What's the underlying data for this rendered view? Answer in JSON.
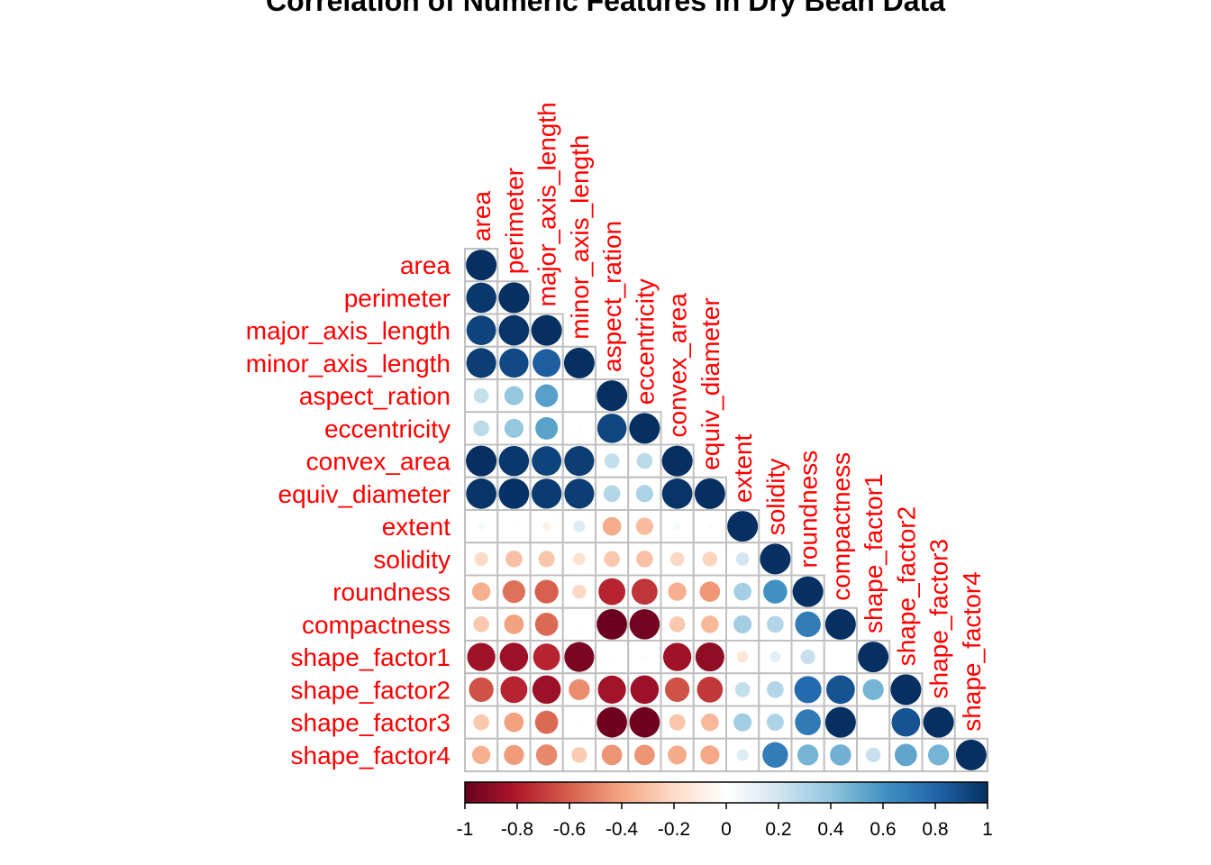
{
  "chart_data": {
    "type": "heatmap",
    "subtype": "correlation-circle-lower",
    "title": "Correlation of Numeric Features in Dry Bean Data",
    "variables": [
      "area",
      "perimeter",
      "major_axis_length",
      "minor_axis_length",
      "aspect_ration",
      "eccentricity",
      "convex_area",
      "equiv_diameter",
      "extent",
      "solidity",
      "roundness",
      "compactness",
      "shape_factor1",
      "shape_factor2",
      "shape_factor3",
      "shape_factor4"
    ],
    "matrix": [
      [
        1.0
      ],
      [
        0.97,
        1.0
      ],
      [
        0.93,
        0.98,
        1.0
      ],
      [
        0.95,
        0.91,
        0.83,
        1.0
      ],
      [
        0.24,
        0.39,
        0.55,
        -0.01,
        1.0
      ],
      [
        0.27,
        0.39,
        0.54,
        0.02,
        0.92,
        1.0
      ],
      [
        1.0,
        0.97,
        0.93,
        0.95,
        0.24,
        0.27,
        1.0
      ],
      [
        0.98,
        0.99,
        0.96,
        0.95,
        0.3,
        0.32,
        0.98,
        1.0
      ],
      [
        0.05,
        0.02,
        -0.08,
        0.15,
        -0.37,
        -0.32,
        0.05,
        0.03,
        1.0
      ],
      [
        -0.2,
        -0.3,
        -0.28,
        -0.16,
        -0.27,
        -0.3,
        -0.21,
        -0.23,
        0.19,
        1.0
      ],
      [
        -0.36,
        -0.55,
        -0.6,
        -0.21,
        -0.77,
        -0.72,
        -0.36,
        -0.44,
        0.34,
        0.61,
        1.0
      ],
      [
        -0.27,
        -0.41,
        -0.57,
        -0.02,
        -0.99,
        -0.97,
        -0.27,
        -0.33,
        0.35,
        0.3,
        0.7,
        1.0
      ],
      [
        -0.85,
        -0.86,
        -0.77,
        -0.95,
        0.02,
        0.02,
        -0.85,
        -0.89,
        -0.14,
        0.12,
        0.23,
        -0.01,
        1.0
      ],
      [
        -0.64,
        -0.77,
        -0.86,
        -0.47,
        -0.84,
        -0.86,
        -0.64,
        -0.71,
        0.24,
        0.3,
        0.78,
        0.87,
        0.47,
        1.0
      ],
      [
        -0.27,
        -0.41,
        -0.57,
        -0.02,
        -0.98,
        -0.98,
        -0.28,
        -0.33,
        0.35,
        0.31,
        0.71,
        1.0,
        -0.01,
        0.87,
        1.0
      ],
      [
        -0.36,
        -0.43,
        -0.48,
        -0.26,
        -0.45,
        -0.45,
        -0.38,
        -0.39,
        0.15,
        0.7,
        0.47,
        0.48,
        0.23,
        0.53,
        0.47,
        1.0
      ]
    ],
    "colorbar": {
      "ticks": [
        "-1",
        "-0.8",
        "-0.6",
        "-0.4",
        "-0.2",
        "0",
        "0.2",
        "0.4",
        "0.6",
        "0.8",
        "1"
      ],
      "range": [
        -1,
        1
      ],
      "colors": [
        "#67001F",
        "#B2182B",
        "#D6604D",
        "#F4A582",
        "#FDDBC7",
        "#FFFFFF",
        "#D1E5F0",
        "#92C5DE",
        "#4393C3",
        "#2166AC",
        "#053061"
      ]
    },
    "label_color": "#FF0000",
    "grid_color": "#C0C0C0"
  }
}
